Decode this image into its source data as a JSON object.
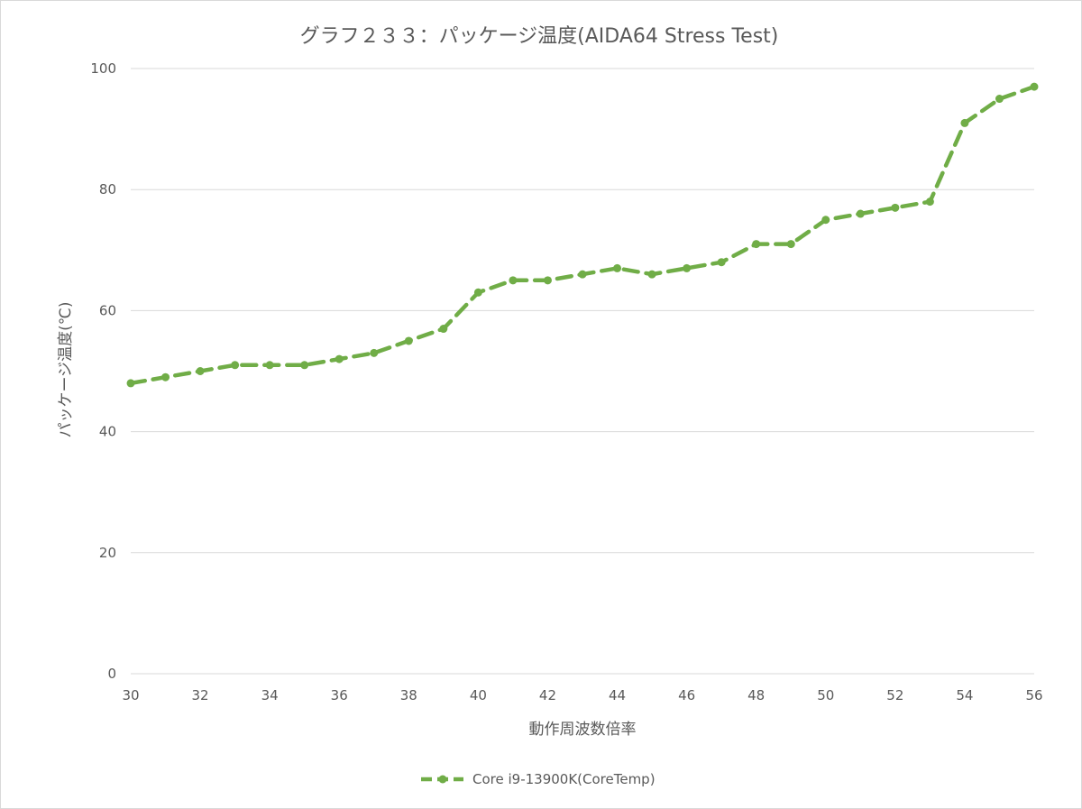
{
  "chart_data": {
    "type": "line",
    "title": "グラフ２３３：パッケージ温度(AIDA64 Stress Test)",
    "xlabel": "動作周波数倍率",
    "ylabel": "パッケージ温度(℃)",
    "xlim": [
      30,
      56
    ],
    "ylim": [
      0,
      100
    ],
    "x_ticks": [
      30,
      32,
      34,
      36,
      38,
      40,
      42,
      44,
      46,
      48,
      50,
      52,
      54,
      56
    ],
    "y_ticks": [
      0,
      20,
      40,
      60,
      80,
      100
    ],
    "grid": "horizontal",
    "legend_position": "bottom",
    "series": [
      {
        "name": "Core i9-13900K(CoreTemp)",
        "color": "#70ad47",
        "line_style": "dashed",
        "marker": "circle",
        "x": [
          30,
          31,
          32,
          33,
          34,
          35,
          36,
          37,
          38,
          39,
          40,
          41,
          42,
          43,
          44,
          45,
          46,
          47,
          48,
          49,
          50,
          51,
          52,
          53,
          54,
          55,
          56
        ],
        "y": [
          48,
          49,
          50,
          51,
          51,
          51,
          52,
          53,
          55,
          57,
          63,
          65,
          65,
          66,
          67,
          66,
          67,
          68,
          71,
          71,
          75,
          76,
          77,
          78,
          91,
          95,
          97
        ]
      }
    ]
  }
}
